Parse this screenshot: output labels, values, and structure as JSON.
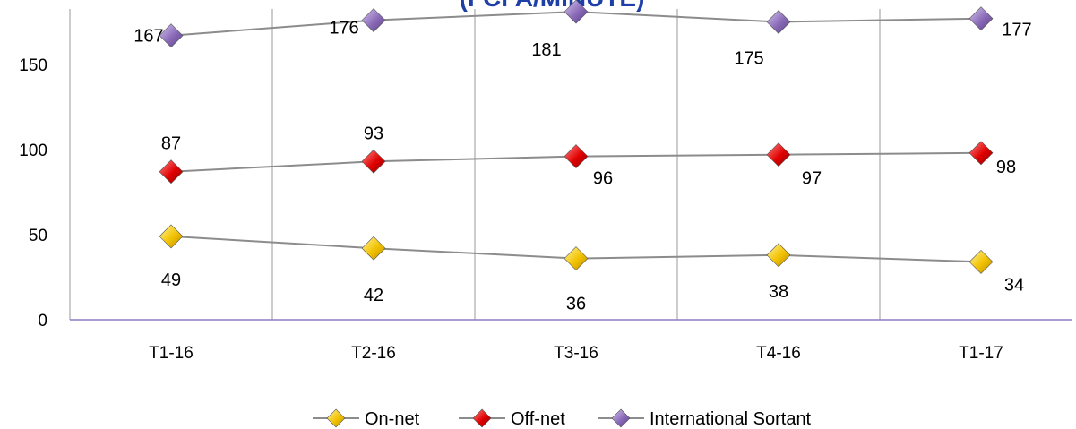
{
  "chart_data": {
    "type": "line",
    "title": "(FCFA/MINUTE)",
    "categories": [
      "T1-16",
      "T2-16",
      "T3-16",
      "T4-16",
      "T1-17"
    ],
    "ylim": [
      0,
      181
    ],
    "yticks": [
      "0",
      "50",
      "100",
      "150"
    ],
    "grid": "vertical",
    "legend_position": "bottom",
    "series": [
      {
        "name": "On-net",
        "values": [
          49,
          42,
          36,
          38,
          34
        ],
        "color": "#F2C200"
      },
      {
        "name": "Off-net",
        "values": [
          87,
          93,
          96,
          97,
          98
        ],
        "color": "#E00000"
      },
      {
        "name": "International Sortant",
        "values": [
          167,
          176,
          181,
          175,
          177
        ],
        "color": "#8A6AB8"
      }
    ],
    "colors": {
      "title": "#1F3FA8",
      "line": "#8C8C8C",
      "axis": "#8E7CC3",
      "grid": "#9A9A9A"
    }
  }
}
